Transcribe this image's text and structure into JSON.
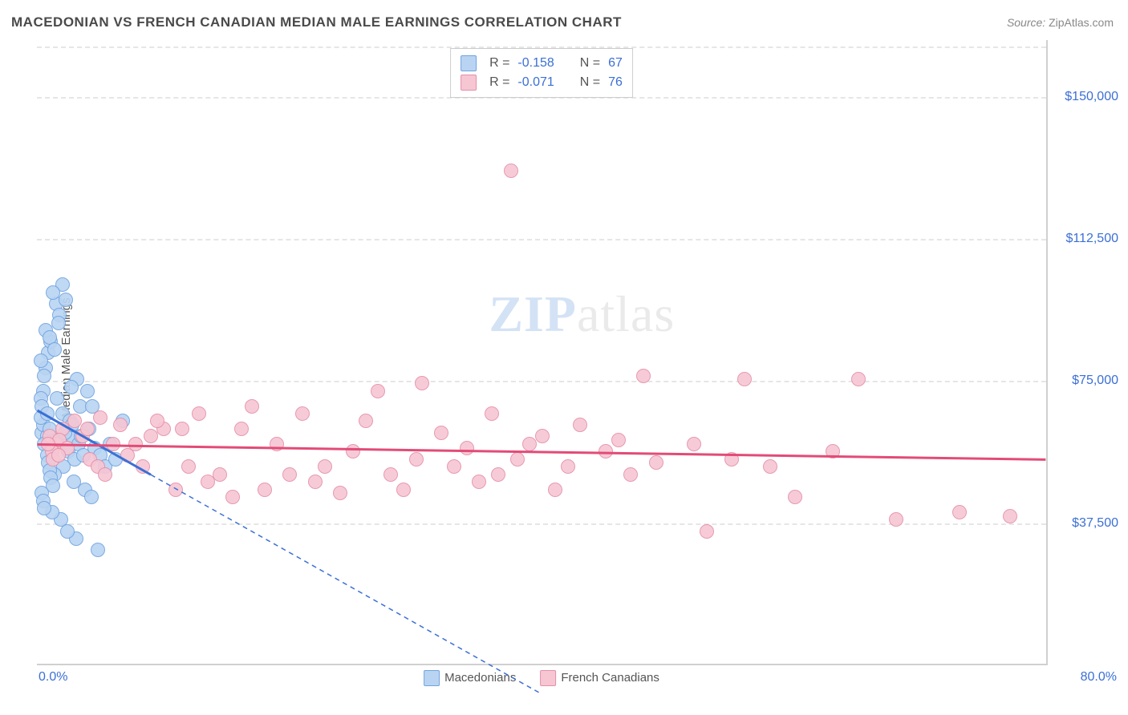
{
  "title": "MACEDONIAN VS FRENCH CANADIAN MEDIAN MALE EARNINGS CORRELATION CHART",
  "source_label": "Source:",
  "source_value": "ZipAtlas.com",
  "y_axis_label": "Median Male Earnings",
  "watermark_zip": "ZIP",
  "watermark_atlas": "atlas",
  "chart": {
    "type": "scatter",
    "xlim": [
      0,
      80
    ],
    "ylim": [
      0,
      165000
    ],
    "x_unit": "%",
    "background_color": "#ffffff",
    "grid_color": "#e6e6e6",
    "axis_color": "#d0d0d0",
    "tick_color": "#3b6fd6",
    "y_ticks": [
      37500,
      75000,
      112500,
      150000
    ],
    "y_tick_labels": [
      "$37,500",
      "$75,000",
      "$112,500",
      "$150,000"
    ],
    "x_min_label": "0.0%",
    "x_max_label": "80.0%",
    "marker_radius": 9,
    "marker_stroke_width": 1.5,
    "marker_fill_opacity": 0.35,
    "trend_line_width": 3,
    "trend_dash_pattern": "6,5"
  },
  "stats_legend": {
    "rows": [
      {
        "r_label": "R =",
        "r_value": "-0.158",
        "n_label": "N =",
        "n_value": "67",
        "swatch_fill": "#b9d4f2",
        "swatch_stroke": "#6fa3e0"
      },
      {
        "r_label": "R =",
        "r_value": "-0.071",
        "n_label": "N =",
        "n_value": "76",
        "swatch_fill": "#f6c6d3",
        "swatch_stroke": "#e58fa8"
      }
    ]
  },
  "series": [
    {
      "name": "Macedonians",
      "fill": "#b9d4f2",
      "stroke": "#6fa3e0",
      "trend_stroke": "#3b6fd6",
      "trend": {
        "x1": 0,
        "y1": 67000,
        "x_solid_end": 9,
        "y_solid_end": 50000,
        "x2": 40,
        "y2": -8000
      },
      "points": [
        [
          0.4,
          61000
        ],
        [
          0.5,
          63000
        ],
        [
          0.8,
          60000
        ],
        [
          0.3,
          65000
        ],
        [
          0.6,
          58000
        ],
        [
          1.0,
          62000
        ],
        [
          1.2,
          57000
        ],
        [
          0.5,
          72000
        ],
        [
          0.7,
          78000
        ],
        [
          0.9,
          82000
        ],
        [
          1.1,
          85000
        ],
        [
          0.3,
          80000
        ],
        [
          0.6,
          76000
        ],
        [
          1.5,
          95000
        ],
        [
          1.8,
          92000
        ],
        [
          2.0,
          100000
        ],
        [
          1.3,
          98000
        ],
        [
          2.3,
          96000
        ],
        [
          1.7,
          90000
        ],
        [
          2.5,
          56000
        ],
        [
          3.0,
          54000
        ],
        [
          2.8,
          60000
        ],
        [
          3.3,
          58000
        ],
        [
          3.7,
          55000
        ],
        [
          4.1,
          62000
        ],
        [
          4.6,
          57000
        ],
        [
          3.4,
          68000
        ],
        [
          2.9,
          48000
        ],
        [
          3.8,
          46000
        ],
        [
          4.3,
          44000
        ],
        [
          2.1,
          52000
        ],
        [
          1.4,
          50000
        ],
        [
          4.8,
          30000
        ],
        [
          3.1,
          33000
        ],
        [
          2.4,
          35000
        ],
        [
          1.9,
          38000
        ],
        [
          1.2,
          40000
        ],
        [
          1.6,
          70000
        ],
        [
          2.0,
          66000
        ],
        [
          2.6,
          64000
        ],
        [
          0.8,
          55000
        ],
        [
          0.9,
          53000
        ],
        [
          1.0,
          51000
        ],
        [
          1.1,
          49000
        ],
        [
          1.3,
          47000
        ],
        [
          0.4,
          45000
        ],
        [
          0.5,
          43000
        ],
        [
          0.6,
          41000
        ],
        [
          5.0,
          55000
        ],
        [
          5.4,
          52000
        ],
        [
          5.8,
          58000
        ],
        [
          6.2,
          54000
        ],
        [
          6.8,
          64000
        ],
        [
          4.0,
          72000
        ],
        [
          4.4,
          68000
        ],
        [
          3.2,
          75000
        ],
        [
          2.7,
          73000
        ],
        [
          0.7,
          88000
        ],
        [
          1.0,
          86000
        ],
        [
          1.4,
          83000
        ],
        [
          0.3,
          70000
        ],
        [
          0.4,
          68000
        ],
        [
          0.8,
          66000
        ],
        [
          1.6,
          59000
        ],
        [
          2.2,
          61000
        ],
        [
          2.8,
          63000
        ],
        [
          3.5,
          60000
        ]
      ]
    },
    {
      "name": "French Canadians",
      "fill": "#f6c6d3",
      "stroke": "#e58fa8",
      "trend_stroke": "#e34b77",
      "trend": {
        "x1": 0,
        "y1": 58000,
        "x_solid_end": 80,
        "y_solid_end": 54000,
        "x2": 80,
        "y2": 54000
      },
      "points": [
        [
          1.0,
          60000
        ],
        [
          1.5,
          58000
        ],
        [
          2.0,
          62000
        ],
        [
          1.2,
          56000
        ],
        [
          1.8,
          59000
        ],
        [
          2.4,
          57000
        ],
        [
          3.0,
          64000
        ],
        [
          3.6,
          60000
        ],
        [
          4.2,
          54000
        ],
        [
          4.8,
          52000
        ],
        [
          5.4,
          50000
        ],
        [
          6.0,
          58000
        ],
        [
          6.6,
          63000
        ],
        [
          7.2,
          55000
        ],
        [
          7.8,
          58000
        ],
        [
          8.4,
          52000
        ],
        [
          9.0,
          60000
        ],
        [
          10.0,
          62000
        ],
        [
          11.0,
          46000
        ],
        [
          12.0,
          52000
        ],
        [
          12.8,
          66000
        ],
        [
          13.5,
          48000
        ],
        [
          14.5,
          50000
        ],
        [
          15.5,
          44000
        ],
        [
          16.2,
          62000
        ],
        [
          17.0,
          68000
        ],
        [
          18.0,
          46000
        ],
        [
          19.0,
          58000
        ],
        [
          20.0,
          50000
        ],
        [
          21.0,
          66000
        ],
        [
          22.0,
          48000
        ],
        [
          22.8,
          52000
        ],
        [
          24.0,
          45000
        ],
        [
          25.0,
          56000
        ],
        [
          26.0,
          64000
        ],
        [
          27.0,
          72000
        ],
        [
          28.0,
          50000
        ],
        [
          29.0,
          46000
        ],
        [
          30.0,
          54000
        ],
        [
          30.5,
          74000
        ],
        [
          32.0,
          61000
        ],
        [
          33.0,
          52000
        ],
        [
          34.0,
          57000
        ],
        [
          35.0,
          48000
        ],
        [
          36.0,
          66000
        ],
        [
          36.5,
          50000
        ],
        [
          37.5,
          130000
        ],
        [
          38.0,
          54000
        ],
        [
          39.0,
          58000
        ],
        [
          40.0,
          60000
        ],
        [
          41.0,
          46000
        ],
        [
          42.0,
          52000
        ],
        [
          43.0,
          63000
        ],
        [
          45.0,
          56000
        ],
        [
          46.0,
          59000
        ],
        [
          47.0,
          50000
        ],
        [
          48.0,
          76000
        ],
        [
          49.0,
          53000
        ],
        [
          52.0,
          58000
        ],
        [
          53.0,
          35000
        ],
        [
          55.0,
          54000
        ],
        [
          56.0,
          75000
        ],
        [
          58.0,
          52000
        ],
        [
          60.0,
          44000
        ],
        [
          63.0,
          56000
        ],
        [
          65.0,
          75000
        ],
        [
          68.0,
          38000
        ],
        [
          73.0,
          40000
        ],
        [
          77.0,
          39000
        ],
        [
          4.0,
          62000
        ],
        [
          5.0,
          65000
        ],
        [
          9.5,
          64000
        ],
        [
          11.5,
          62000
        ],
        [
          1.3,
          54000
        ],
        [
          1.7,
          55000
        ],
        [
          0.9,
          58000
        ]
      ]
    }
  ],
  "bottom_legend": {
    "items": [
      {
        "label": "Macedonians",
        "fill": "#b9d4f2",
        "stroke": "#6fa3e0"
      },
      {
        "label": "French Canadians",
        "fill": "#f6c6d3",
        "stroke": "#e58fa8"
      }
    ]
  }
}
